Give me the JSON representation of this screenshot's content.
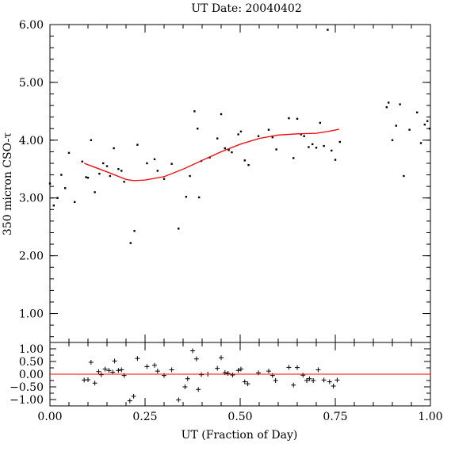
{
  "chart_data": [
    {
      "type": "scatter",
      "title": "UT Date: 20040402",
      "xlabel": "",
      "ylabel": "350 micron CSO-τ",
      "xlim": [
        0,
        1
      ],
      "ylim": [
        0.5,
        6.0
      ],
      "yticks": [
        1.0,
        2.0,
        3.0,
        4.0,
        5.0,
        6.0
      ],
      "ytick_labels": [
        "1.00",
        "2.00",
        "3.00",
        "4.00",
        "5.00",
        "6.00"
      ],
      "grid": false,
      "series": [
        {
          "marker": "dot",
          "color": "#000000",
          "points": [
            [
              0.0,
              3.25
            ],
            [
              0.01,
              2.87
            ],
            [
              0.02,
              3.0
            ],
            [
              0.03,
              3.4
            ],
            [
              0.04,
              3.17
            ],
            [
              0.05,
              3.78
            ],
            [
              0.065,
              2.93
            ],
            [
              0.085,
              3.63
            ],
            [
              0.095,
              3.36
            ],
            [
              0.1,
              3.35
            ],
            [
              0.108,
              4.0
            ],
            [
              0.118,
              3.1
            ],
            [
              0.13,
              3.42
            ],
            [
              0.14,
              3.6
            ],
            [
              0.15,
              3.55
            ],
            [
              0.158,
              3.38
            ],
            [
              0.168,
              3.86
            ],
            [
              0.18,
              3.5
            ],
            [
              0.188,
              3.47
            ],
            [
              0.195,
              3.28
            ],
            [
              0.212,
              2.22
            ],
            [
              0.222,
              2.43
            ],
            [
              0.23,
              3.92
            ],
            [
              0.255,
              3.6
            ],
            [
              0.275,
              3.67
            ],
            [
              0.283,
              3.47
            ],
            [
              0.3,
              3.33
            ],
            [
              0.32,
              3.59
            ],
            [
              0.338,
              2.47
            ],
            [
              0.358,
              3.02
            ],
            [
              0.368,
              3.38
            ],
            [
              0.38,
              4.5
            ],
            [
              0.388,
              4.2
            ],
            [
              0.392,
              3.01
            ],
            [
              0.398,
              3.64
            ],
            [
              0.42,
              3.7
            ],
            [
              0.44,
              4.03
            ],
            [
              0.45,
              4.45
            ],
            [
              0.46,
              3.86
            ],
            [
              0.47,
              3.83
            ],
            [
              0.478,
              3.79
            ],
            [
              0.495,
              4.1
            ],
            [
              0.502,
              4.15
            ],
            [
              0.512,
              3.65
            ],
            [
              0.522,
              3.57
            ],
            [
              0.548,
              4.07
            ],
            [
              0.575,
              4.18
            ],
            [
              0.585,
              4.05
            ],
            [
              0.595,
              3.84
            ],
            [
              0.628,
              4.38
            ],
            [
              0.64,
              3.69
            ],
            [
              0.65,
              4.37
            ],
            [
              0.66,
              4.1
            ],
            [
              0.668,
              4.07
            ],
            [
              0.68,
              3.88
            ],
            [
              0.69,
              3.93
            ],
            [
              0.7,
              3.87
            ],
            [
              0.71,
              4.3
            ],
            [
              0.72,
              3.9
            ],
            [
              0.73,
              5.91
            ],
            [
              0.74,
              3.82
            ],
            [
              0.75,
              3.66
            ],
            [
              0.762,
              3.97
            ],
            [
              0.885,
              4.57
            ],
            [
              0.89,
              4.65
            ],
            [
              0.9,
              4.0
            ],
            [
              0.91,
              4.25
            ],
            [
              0.92,
              4.62
            ],
            [
              0.93,
              3.38
            ],
            [
              0.945,
              4.18
            ],
            [
              0.965,
              4.48
            ],
            [
              0.975,
              3.95
            ],
            [
              0.985,
              4.27
            ],
            [
              0.992,
              4.33
            ],
            [
              0.998,
              4.2
            ]
          ]
        },
        {
          "type": "line",
          "color": "#ff0000",
          "points": [
            [
              0.09,
              3.6
            ],
            [
              0.15,
              3.45
            ],
            [
              0.2,
              3.32
            ],
            [
              0.22,
              3.3
            ],
            [
              0.25,
              3.31
            ],
            [
              0.3,
              3.37
            ],
            [
              0.35,
              3.5
            ],
            [
              0.4,
              3.65
            ],
            [
              0.45,
              3.8
            ],
            [
              0.5,
              3.93
            ],
            [
              0.55,
              4.03
            ],
            [
              0.6,
              4.09
            ],
            [
              0.65,
              4.11
            ],
            [
              0.7,
              4.12
            ],
            [
              0.73,
              4.15
            ],
            [
              0.76,
              4.19
            ]
          ]
        }
      ]
    },
    {
      "type": "scatter",
      "title": "",
      "xlabel": "UT (Fraction of Day)",
      "ylabel": "",
      "xlim": [
        0,
        1
      ],
      "ylim": [
        -1.25,
        1.25
      ],
      "xticks": [
        0.0,
        0.25,
        0.5,
        0.75,
        1.0
      ],
      "xtick_labels": [
        "0.00",
        "0.25",
        "0.50",
        "0.75",
        "1.00"
      ],
      "yticks": [
        -1.0,
        -0.5,
        0.0,
        0.5,
        1.0
      ],
      "ytick_labels": [
        "−1.00",
        "−0.50",
        "0.00",
        "0.50",
        "1.00"
      ],
      "grid": false,
      "series": [
        {
          "marker": "plus",
          "color": "#000000",
          "points": [
            [
              0.09,
              -0.23
            ],
            [
              0.1,
              -0.22
            ],
            [
              0.108,
              0.47
            ],
            [
              0.118,
              -0.35
            ],
            [
              0.128,
              0.1
            ],
            [
              0.135,
              -0.02
            ],
            [
              0.145,
              0.2
            ],
            [
              0.155,
              0.15
            ],
            [
              0.165,
              0.08
            ],
            [
              0.17,
              0.52
            ],
            [
              0.18,
              0.15
            ],
            [
              0.188,
              0.17
            ],
            [
              0.195,
              -0.05
            ],
            [
              0.21,
              -1.05
            ],
            [
              0.22,
              -0.87
            ],
            [
              0.23,
              0.62
            ],
            [
              0.255,
              0.3
            ],
            [
              0.275,
              0.35
            ],
            [
              0.283,
              0.12
            ],
            [
              0.3,
              -0.05
            ],
            [
              0.32,
              0.17
            ],
            [
              0.338,
              -1.01
            ],
            [
              0.355,
              -0.5
            ],
            [
              0.362,
              -0.18
            ],
            [
              0.375,
              0.92
            ],
            [
              0.385,
              0.6
            ],
            [
              0.39,
              -0.6
            ],
            [
              0.398,
              -0.02
            ],
            [
              0.415,
              0.0
            ],
            [
              0.44,
              0.23
            ],
            [
              0.45,
              0.65
            ],
            [
              0.46,
              0.06
            ],
            [
              0.468,
              0.03
            ],
            [
              0.48,
              -0.03
            ],
            [
              0.495,
              0.15
            ],
            [
              0.502,
              0.2
            ],
            [
              0.512,
              -0.3
            ],
            [
              0.52,
              -0.38
            ],
            [
              0.548,
              0.05
            ],
            [
              0.575,
              0.12
            ],
            [
              0.585,
              -0.05
            ],
            [
              0.593,
              -0.25
            ],
            [
              0.628,
              0.27
            ],
            [
              0.64,
              -0.43
            ],
            [
              0.65,
              0.26
            ],
            [
              0.665,
              -0.04
            ],
            [
              0.675,
              -0.25
            ],
            [
              0.682,
              -0.18
            ],
            [
              0.692,
              -0.25
            ],
            [
              0.705,
              0.17
            ],
            [
              0.72,
              -0.23
            ],
            [
              0.735,
              -0.3
            ],
            [
              0.745,
              -0.47
            ],
            [
              0.755,
              -0.23
            ]
          ]
        },
        {
          "type": "line",
          "color": "#ff0000",
          "points": [
            [
              0.0,
              0.0
            ],
            [
              1.0,
              0.0
            ]
          ]
        }
      ]
    }
  ]
}
